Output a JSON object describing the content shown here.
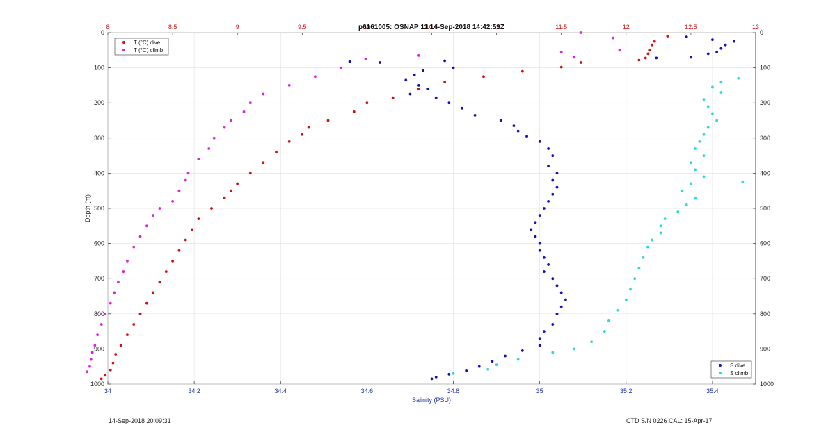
{
  "chart_data": {
    "type": "scatter",
    "title": "p6161005: OSNAP 11 14-Sep-2018 14:42:59Z",
    "ylabel": "Depth (m)",
    "xlabel_bottom": "Salinity (PSU)",
    "xlabel_top": "",
    "ylim": [
      0,
      1000
    ],
    "y_reversed": true,
    "xlim_bottom": [
      34,
      35.5
    ],
    "xlim_top": [
      8,
      13
    ],
    "yticks": [
      0,
      100,
      200,
      300,
      400,
      500,
      600,
      700,
      800,
      900,
      1000
    ],
    "xticks_bottom": [
      34,
      34.2,
      34.4,
      34.6,
      34.8,
      35,
      35.2,
      35.4
    ],
    "xticks_top": [
      8,
      8.5,
      9,
      9.5,
      10,
      10.5,
      11,
      11.5,
      12,
      12.5,
      13
    ],
    "grid": true,
    "legend_top": {
      "placement": "top-left",
      "entries": [
        "T (°C) dive",
        "T (°C) climb"
      ]
    },
    "legend_bottom": {
      "placement": "bottom-right",
      "entries": [
        "S dive",
        "S climb"
      ]
    },
    "series": [
      {
        "name": "T (°C) dive",
        "axis": "top",
        "color": "#cc1111",
        "points": [
          [
            12.32,
            10
          ],
          [
            12.22,
            25
          ],
          [
            12.2,
            35
          ],
          [
            12.18,
            50
          ],
          [
            12.17,
            60
          ],
          [
            12.15,
            72
          ],
          [
            12.1,
            78
          ],
          [
            11.65,
            85
          ],
          [
            11.5,
            98
          ],
          [
            11.2,
            110
          ],
          [
            10.9,
            125
          ],
          [
            10.6,
            140
          ],
          [
            10.4,
            160
          ],
          [
            10.2,
            185
          ],
          [
            10.0,
            200
          ],
          [
            9.9,
            225
          ],
          [
            9.7,
            250
          ],
          [
            9.55,
            270
          ],
          [
            9.5,
            290
          ],
          [
            9.4,
            310
          ],
          [
            9.3,
            340
          ],
          [
            9.2,
            370
          ],
          [
            9.1,
            400
          ],
          [
            9.0,
            430
          ],
          [
            8.95,
            450
          ],
          [
            8.9,
            470
          ],
          [
            8.8,
            500
          ],
          [
            8.7,
            530
          ],
          [
            8.65,
            560
          ],
          [
            8.6,
            590
          ],
          [
            8.55,
            620
          ],
          [
            8.5,
            650
          ],
          [
            8.45,
            680
          ],
          [
            8.4,
            710
          ],
          [
            8.35,
            740
          ],
          [
            8.3,
            770
          ],
          [
            8.25,
            800
          ],
          [
            8.2,
            830
          ],
          [
            8.15,
            860
          ],
          [
            8.1,
            890
          ],
          [
            8.06,
            915
          ],
          [
            8.04,
            940
          ],
          [
            8.02,
            960
          ],
          [
            7.98,
            975
          ],
          [
            7.95,
            985
          ]
        ]
      },
      {
        "name": "T (°C) climb",
        "axis": "top",
        "color": "#dd22dd",
        "points": [
          [
            11.65,
            0
          ],
          [
            11.9,
            15
          ],
          [
            11.5,
            55
          ],
          [
            11.95,
            50
          ],
          [
            11.6,
            70
          ],
          [
            10.4,
            65
          ],
          [
            9.99,
            75
          ],
          [
            9.8,
            100
          ],
          [
            9.6,
            125
          ],
          [
            9.4,
            150
          ],
          [
            9.2,
            175
          ],
          [
            9.1,
            200
          ],
          [
            9.05,
            225
          ],
          [
            8.95,
            250
          ],
          [
            8.9,
            270
          ],
          [
            8.82,
            300
          ],
          [
            8.78,
            330
          ],
          [
            8.7,
            360
          ],
          [
            8.62,
            400
          ],
          [
            8.6,
            420
          ],
          [
            8.55,
            450
          ],
          [
            8.5,
            480
          ],
          [
            8.4,
            500
          ],
          [
            8.35,
            520
          ],
          [
            8.3,
            550
          ],
          [
            8.25,
            580
          ],
          [
            8.2,
            610
          ],
          [
            8.15,
            650
          ],
          [
            8.12,
            680
          ],
          [
            8.08,
            710
          ],
          [
            8.05,
            740
          ],
          [
            8.02,
            770
          ],
          [
            7.98,
            800
          ],
          [
            7.95,
            830
          ],
          [
            7.92,
            860
          ],
          [
            7.9,
            890
          ],
          [
            7.88,
            910
          ],
          [
            7.87,
            930
          ],
          [
            7.86,
            950
          ],
          [
            7.84,
            965
          ]
        ]
      },
      {
        "name": "S dive",
        "axis": "bottom",
        "color": "#1111bb",
        "points": [
          [
            35.34,
            12
          ],
          [
            35.4,
            20
          ],
          [
            35.45,
            25
          ],
          [
            35.43,
            35
          ],
          [
            35.42,
            45
          ],
          [
            35.41,
            55
          ],
          [
            35.39,
            60
          ],
          [
            35.35,
            70
          ],
          [
            35.27,
            72
          ],
          [
            34.56,
            82
          ],
          [
            34.63,
            85
          ],
          [
            34.78,
            80
          ],
          [
            34.8,
            100
          ],
          [
            34.73,
            108
          ],
          [
            34.71,
            120
          ],
          [
            34.69,
            135
          ],
          [
            34.72,
            150
          ],
          [
            34.74,
            160
          ],
          [
            34.7,
            175
          ],
          [
            34.76,
            185
          ],
          [
            34.79,
            200
          ],
          [
            34.82,
            215
          ],
          [
            34.85,
            235
          ],
          [
            34.91,
            250
          ],
          [
            34.94,
            265
          ],
          [
            34.95,
            280
          ],
          [
            34.97,
            295
          ],
          [
            35.0,
            310
          ],
          [
            35.02,
            330
          ],
          [
            35.03,
            350
          ],
          [
            35.02,
            380
          ],
          [
            35.04,
            400
          ],
          [
            35.03,
            420
          ],
          [
            35.04,
            440
          ],
          [
            35.03,
            460
          ],
          [
            35.02,
            480
          ],
          [
            35.01,
            500
          ],
          [
            35.0,
            520
          ],
          [
            34.99,
            540
          ],
          [
            34.98,
            560
          ],
          [
            34.99,
            580
          ],
          [
            35.0,
            600
          ],
          [
            35.0,
            620
          ],
          [
            35.01,
            640
          ],
          [
            35.02,
            660
          ],
          [
            35.01,
            680
          ],
          [
            35.03,
            700
          ],
          [
            35.04,
            720
          ],
          [
            35.05,
            740
          ],
          [
            35.06,
            760
          ],
          [
            35.05,
            780
          ],
          [
            35.04,
            800
          ],
          [
            35.03,
            830
          ],
          [
            35.01,
            850
          ],
          [
            35.0,
            870
          ],
          [
            35.0,
            890
          ],
          [
            34.96,
            905
          ],
          [
            34.92,
            920
          ],
          [
            34.89,
            935
          ],
          [
            34.86,
            950
          ],
          [
            34.83,
            962
          ],
          [
            34.79,
            972
          ],
          [
            34.76,
            980
          ],
          [
            34.75,
            985
          ]
        ]
      },
      {
        "name": "S climb",
        "axis": "bottom",
        "color": "#22dddd",
        "points": [
          [
            35.46,
            130
          ],
          [
            35.42,
            140
          ],
          [
            35.4,
            155
          ],
          [
            35.42,
            170
          ],
          [
            35.38,
            190
          ],
          [
            35.39,
            210
          ],
          [
            35.4,
            230
          ],
          [
            35.41,
            250
          ],
          [
            35.39,
            270
          ],
          [
            35.38,
            290
          ],
          [
            35.37,
            310
          ],
          [
            35.36,
            330
          ],
          [
            35.38,
            350
          ],
          [
            35.35,
            370
          ],
          [
            35.36,
            390
          ],
          [
            35.38,
            410
          ],
          [
            35.35,
            430
          ],
          [
            35.33,
            450
          ],
          [
            35.36,
            470
          ],
          [
            35.34,
            490
          ],
          [
            35.32,
            510
          ],
          [
            35.29,
            530
          ],
          [
            35.28,
            550
          ],
          [
            35.28,
            570
          ],
          [
            35.26,
            590
          ],
          [
            35.25,
            610
          ],
          [
            35.24,
            640
          ],
          [
            35.23,
            670
          ],
          [
            35.22,
            700
          ],
          [
            35.21,
            730
          ],
          [
            35.2,
            760
          ],
          [
            35.18,
            790
          ],
          [
            35.16,
            820
          ],
          [
            35.15,
            850
          ],
          [
            35.12,
            880
          ],
          [
            35.08,
            900
          ],
          [
            35.03,
            910
          ],
          [
            34.95,
            930
          ],
          [
            34.9,
            945
          ],
          [
            34.88,
            958
          ],
          [
            34.8,
            970
          ],
          [
            35.47,
            425
          ]
        ]
      }
    ]
  },
  "footer": {
    "left": "14-Sep-2018 20:09:31",
    "right": "CTD S/N 0226  CAL: 15-Apr-17"
  }
}
